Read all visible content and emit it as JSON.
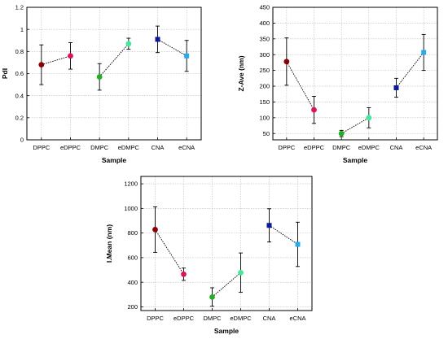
{
  "chart_data": [
    {
      "id": "pdi",
      "type": "scatter",
      "xlabel": "Sample",
      "ylabel": "PdI",
      "categories": [
        "DPPC",
        "eDPPC",
        "DMPC",
        "eDMPC",
        "CNA",
        "eCNA"
      ],
      "ylim": [
        0,
        1.2
      ],
      "yticks": [
        0,
        0.2,
        0.4,
        0.6,
        0.8,
        1,
        1.2
      ],
      "grid": true,
      "values": [
        0.68,
        0.76,
        0.57,
        0.87,
        0.91,
        0.76
      ],
      "errors": [
        0.18,
        0.12,
        0.12,
        0.05,
        0.12,
        0.14
      ],
      "colors": [
        "#8b0000",
        "#e0115f",
        "#22b022",
        "#44e89a",
        "#0a1a9a",
        "#2aa8ea"
      ],
      "markers": [
        "circle",
        "circle",
        "circle",
        "circle",
        "square",
        "square"
      ],
      "connected_pairs": [
        [
          0,
          1
        ],
        [
          2,
          3
        ],
        [
          4,
          5
        ]
      ]
    },
    {
      "id": "zave",
      "type": "scatter",
      "xlabel": "Sample",
      "ylabel": "Z-Ave (nm)",
      "categories": [
        "DPPC",
        "eDPPC",
        "DMPC",
        "eDMPC",
        "CNA",
        "eCNA"
      ],
      "ylim": [
        30,
        450
      ],
      "yticks": [
        50,
        100,
        150,
        200,
        250,
        300,
        350,
        400,
        450
      ],
      "grid": true,
      "values": [
        278,
        125,
        50,
        100,
        195,
        307
      ],
      "errors": [
        75,
        43,
        10,
        32,
        30,
        57
      ],
      "colors": [
        "#8b0000",
        "#e0115f",
        "#22b022",
        "#44e89a",
        "#0a1a9a",
        "#2aa8ea"
      ],
      "markers": [
        "circle",
        "circle",
        "circle",
        "circle",
        "square",
        "square"
      ],
      "connected_pairs": [
        [
          0,
          1
        ],
        [
          2,
          3
        ],
        [
          4,
          5
        ]
      ]
    },
    {
      "id": "imean",
      "type": "scatter",
      "xlabel": "Sample",
      "ylabel": "I.Mean (nm)",
      "categories": [
        "DPPC",
        "eDPPC",
        "DMPC",
        "eDMPC",
        "CNA",
        "eCNA"
      ],
      "ylim": [
        170,
        1260
      ],
      "yticks": [
        200,
        400,
        600,
        800,
        1000,
        1200
      ],
      "grid": true,
      "values": [
        828,
        465,
        280,
        478,
        862,
        708
      ],
      "errors": [
        185,
        50,
        75,
        160,
        135,
        180
      ],
      "colors": [
        "#8b0000",
        "#e0115f",
        "#22b022",
        "#44e89a",
        "#0a1a9a",
        "#2aa8ea"
      ],
      "markers": [
        "circle",
        "circle",
        "circle",
        "circle",
        "square",
        "square"
      ],
      "connected_pairs": [
        [
          0,
          1
        ],
        [
          2,
          3
        ],
        [
          4,
          5
        ]
      ]
    }
  ]
}
